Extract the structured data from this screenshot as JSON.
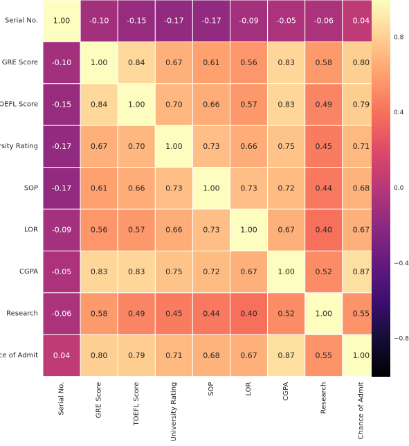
{
  "chart_data": {
    "type": "heatmap",
    "title": "",
    "xlabel": "",
    "ylabel": "",
    "row_labels": [
      "Serial No.",
      "GRE Score",
      "TOEFL Score",
      "University Rating",
      "SOP",
      "LOR",
      "CGPA",
      "Research",
      "Chance of Admit"
    ],
    "col_labels": [
      "Serial No.",
      "GRE Score",
      "TOEFL Score",
      "University Rating",
      "SOP",
      "LOR",
      "CGPA",
      "Research",
      "Chance of Admit"
    ],
    "values": [
      [
        1.0,
        -0.1,
        -0.15,
        -0.17,
        -0.17,
        -0.09,
        -0.05,
        -0.06,
        0.04
      ],
      [
        -0.1,
        1.0,
        0.84,
        0.67,
        0.61,
        0.56,
        0.83,
        0.58,
        0.8
      ],
      [
        -0.15,
        0.84,
        1.0,
        0.7,
        0.66,
        0.57,
        0.83,
        0.49,
        0.79
      ],
      [
        -0.17,
        0.67,
        0.7,
        1.0,
        0.73,
        0.66,
        0.75,
        0.45,
        0.71
      ],
      [
        -0.17,
        0.61,
        0.66,
        0.73,
        1.0,
        0.73,
        0.72,
        0.44,
        0.68
      ],
      [
        -0.09,
        0.56,
        0.57,
        0.66,
        0.73,
        1.0,
        0.67,
        0.4,
        0.67
      ],
      [
        -0.05,
        0.83,
        0.83,
        0.75,
        0.72,
        0.67,
        1.0,
        0.52,
        0.87
      ],
      [
        -0.06,
        0.58,
        0.49,
        0.45,
        0.44,
        0.4,
        0.52,
        1.0,
        0.55
      ],
      [
        0.04,
        0.8,
        0.79,
        0.71,
        0.68,
        0.67,
        0.87,
        0.55,
        1.0
      ]
    ],
    "value_format": "2 decimals",
    "colormap": "magma",
    "vmin": -1.0,
    "vmax": 1.0,
    "colorbar_ticks": [
      0.8,
      0.4,
      0.0,
      -0.4,
      -0.8
    ],
    "colorbar_tick_labels": [
      "0.8",
      "0.4",
      "0.0",
      "−0.4",
      "−0.8"
    ],
    "colors": {
      "cell_border": "#ffffff",
      "text_on_dark": "#ffffff",
      "text_on_light": "#262626",
      "tick_label": "#262626"
    }
  }
}
